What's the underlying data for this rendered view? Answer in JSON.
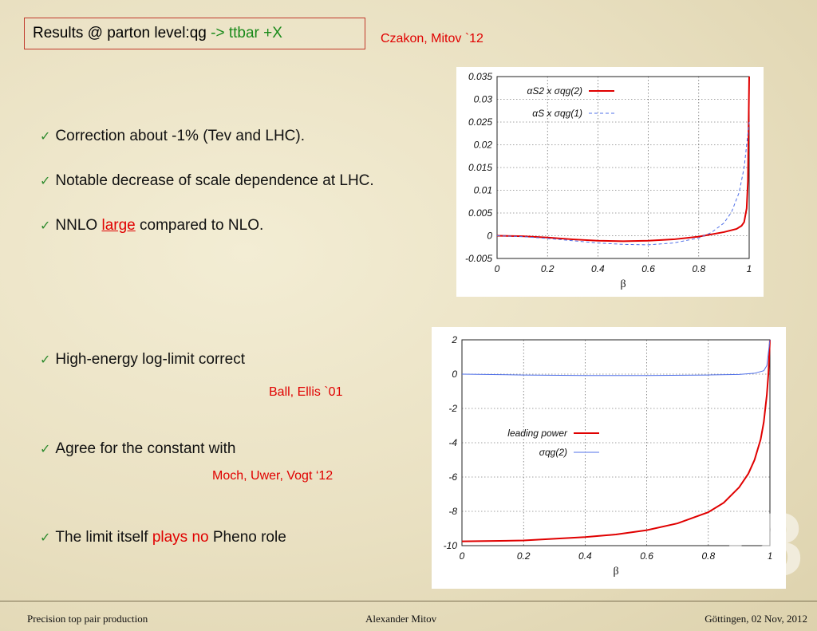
{
  "title": {
    "prefix": "Results @ parton level:qg ",
    "highlight": "-> ttbar +X"
  },
  "citations": {
    "top": "Czakon, Mitov `12",
    "ball": "Ball, Ellis `01",
    "moch": "Moch, Uwer, Vogt ‘12"
  },
  "bullets": {
    "b1": "Correction about -1% (Tev and LHC).",
    "b2": "Notable decrease of scale dependence at LHC.",
    "b3_pre": "NNLO ",
    "b3_red": "large",
    "b3_post": " compared to NLO.",
    "b4": "High-energy log-limit correct",
    "b5": "Agree for the constant with",
    "b6_pre": "The limit itself ",
    "b6_red": "plays no",
    "b6_post": " Pheno role"
  },
  "check_glyph": "✓",
  "slide_number": "18",
  "footer": {
    "left": "Precision top pair production",
    "center": "Alexander Mitov",
    "right": "Göttingen, 02 Nov, 2012"
  },
  "colors": {
    "red": "#e00000",
    "blue": "#5070e8",
    "green": "#1a8a1a"
  },
  "chart_data": [
    {
      "type": "line",
      "xlabel": "β",
      "ylabel": "",
      "xlim": [
        0,
        1
      ],
      "ylim": [
        -0.005,
        0.035
      ],
      "xticks": [
        "0",
        "0.2",
        "0.4",
        "0.6",
        "0.8",
        "1"
      ],
      "yticks": [
        "-0.005",
        "0",
        "0.005",
        "0.01",
        "0.015",
        "0.02",
        "0.025",
        "0.03",
        "0.035"
      ],
      "grid": true,
      "legend_position": "top-left",
      "series": [
        {
          "name": "αS2 x σqg(2)",
          "color": "#e00000",
          "style": "solid",
          "x": [
            0,
            0.1,
            0.2,
            0.3,
            0.4,
            0.5,
            0.6,
            0.7,
            0.8,
            0.9,
            0.95,
            0.97,
            0.98,
            0.99,
            0.995,
            1.0
          ],
          "y": [
            0,
            -0.0001,
            -0.0004,
            -0.0008,
            -0.0011,
            -0.0012,
            -0.0011,
            -0.0008,
            -0.0002,
            0.0008,
            0.0015,
            0.0022,
            0.003,
            0.006,
            0.012,
            0.035
          ]
        },
        {
          "name": "αS x σqg(1)",
          "color": "#5070e8",
          "style": "dashed",
          "x": [
            0,
            0.1,
            0.2,
            0.3,
            0.4,
            0.5,
            0.6,
            0.7,
            0.8,
            0.85,
            0.9,
            0.93,
            0.96,
            0.98,
            1.0
          ],
          "y": [
            0,
            -0.0002,
            -0.0006,
            -0.0011,
            -0.0016,
            -0.0019,
            -0.002,
            -0.0016,
            -0.0005,
            0.0007,
            0.0028,
            0.0052,
            0.0095,
            0.015,
            0.025
          ]
        }
      ]
    },
    {
      "type": "line",
      "xlabel": "β",
      "ylabel": "",
      "xlim": [
        0,
        1
      ],
      "ylim": [
        -10,
        2
      ],
      "xticks": [
        "0",
        "0.2",
        "0.4",
        "0.6",
        "0.8",
        "1"
      ],
      "yticks": [
        "2",
        "0",
        "-2",
        "-4",
        "-6",
        "-8",
        "-10"
      ],
      "grid": true,
      "legend_position": "center-right",
      "series": [
        {
          "name": "leading power",
          "color": "#e00000",
          "style": "solid",
          "x": [
            0,
            0.2,
            0.4,
            0.5,
            0.6,
            0.7,
            0.8,
            0.85,
            0.9,
            0.93,
            0.95,
            0.97,
            0.98,
            0.99,
            0.995,
            1.0
          ],
          "y": [
            -9.75,
            -9.7,
            -9.5,
            -9.35,
            -9.1,
            -8.7,
            -8.05,
            -7.5,
            -6.6,
            -5.8,
            -5.0,
            -3.8,
            -2.8,
            -1.2,
            0.0,
            2.0
          ]
        },
        {
          "name": "σqg(2)",
          "color": "#5070e8",
          "style": "solid",
          "x": [
            0,
            0.2,
            0.4,
            0.6,
            0.8,
            0.9,
            0.95,
            0.98,
            0.99,
            1.0
          ],
          "y": [
            0,
            -0.05,
            -0.08,
            -0.08,
            -0.05,
            -0.02,
            0.05,
            0.2,
            0.5,
            2.0
          ]
        }
      ]
    }
  ]
}
